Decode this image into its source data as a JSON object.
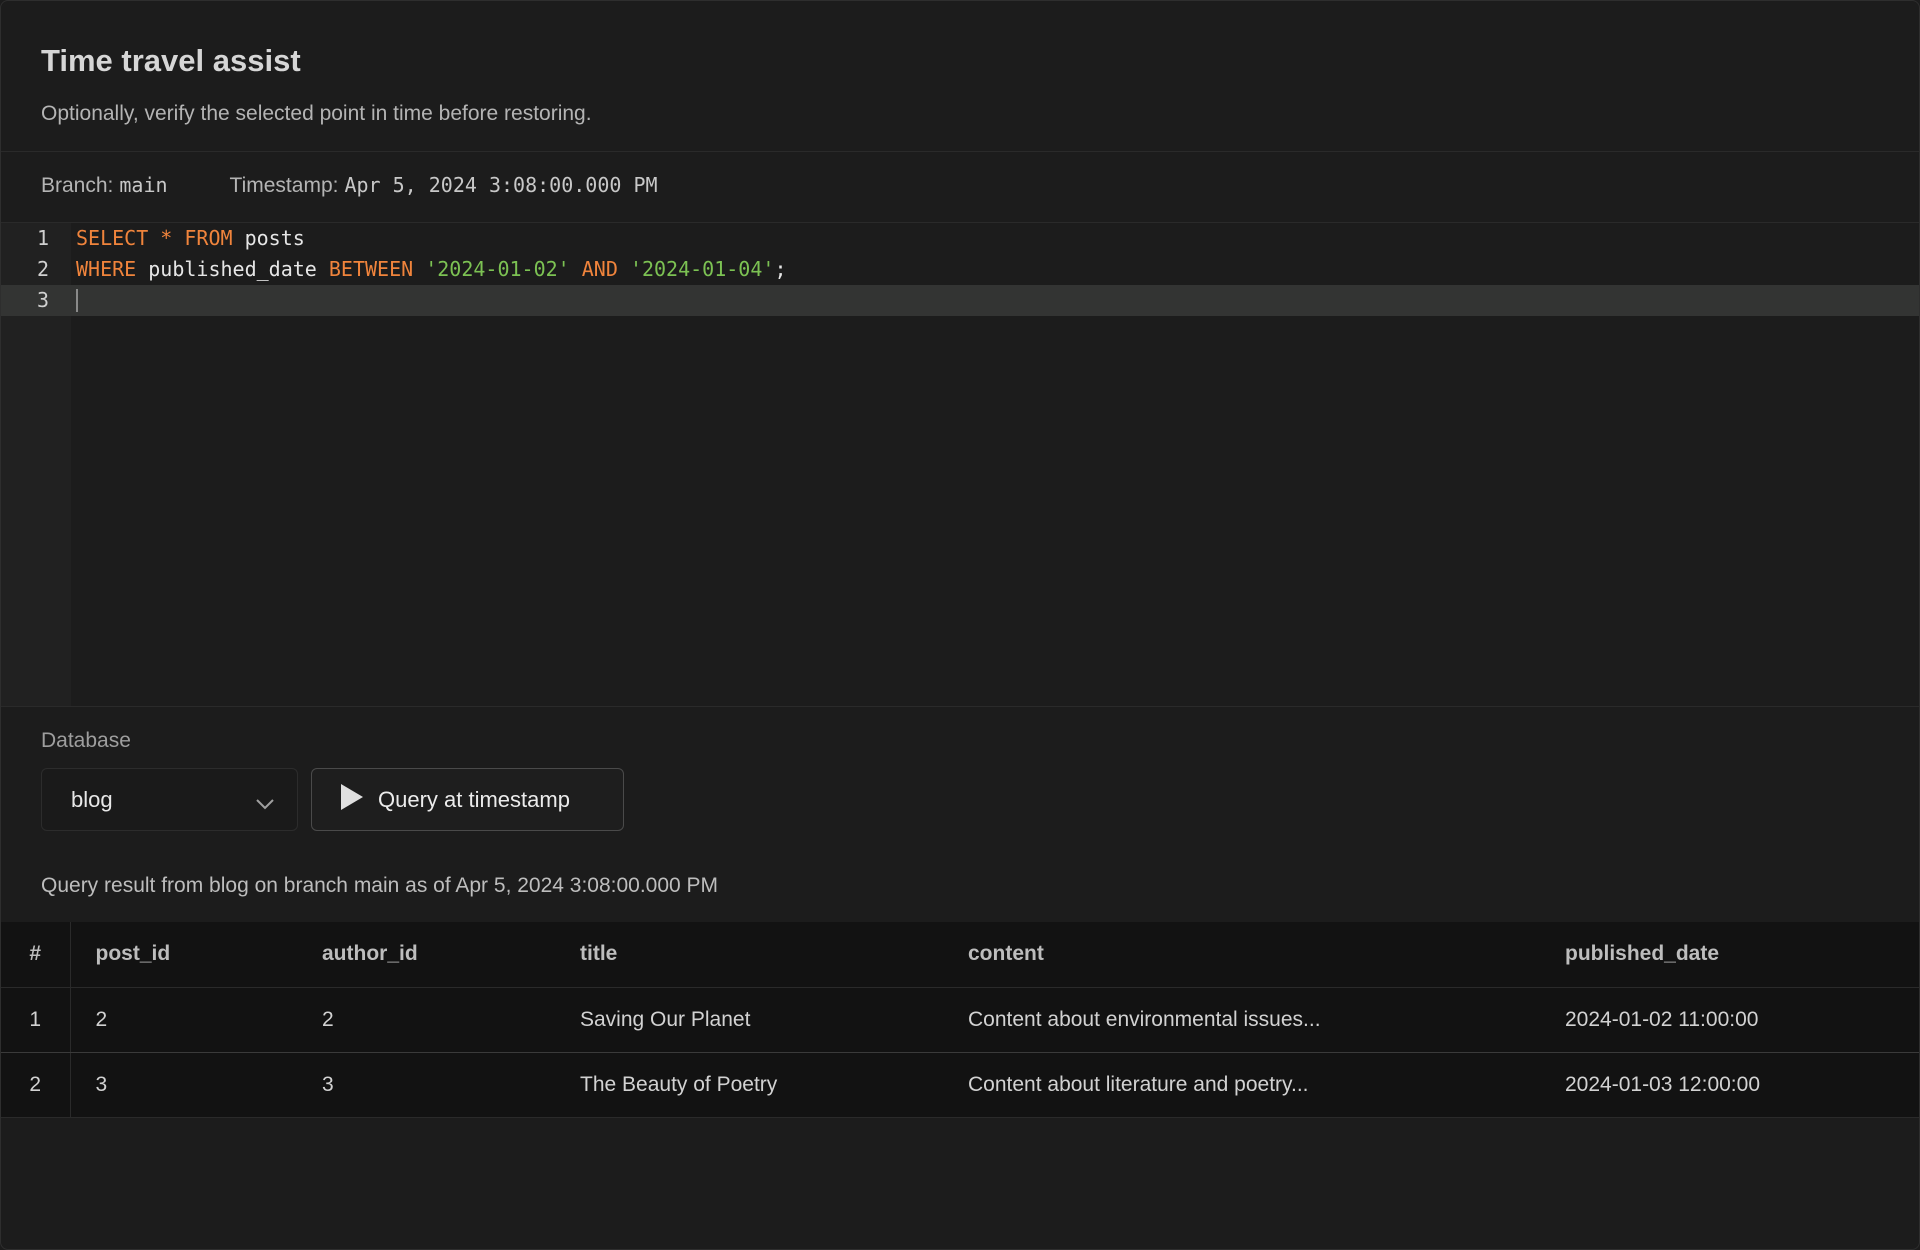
{
  "header": {
    "title": "Time travel assist",
    "subtitle": "Optionally, verify the selected point in time before restoring."
  },
  "meta": {
    "branch_label": "Branch:",
    "branch_value": "main",
    "timestamp_label": "Timestamp:",
    "timestamp_value": "Apr 5, 2024 3:08:00.000 PM"
  },
  "editor": {
    "lines": [
      {
        "num": "1",
        "tokens": [
          {
            "t": "SELECT",
            "c": "kw"
          },
          {
            "t": " "
          },
          {
            "t": "*",
            "c": "kw"
          },
          {
            "t": " "
          },
          {
            "t": "FROM",
            "c": "kw"
          },
          {
            "t": " posts"
          }
        ]
      },
      {
        "num": "2",
        "tokens": [
          {
            "t": "WHERE",
            "c": "kw"
          },
          {
            "t": " published_date "
          },
          {
            "t": "BETWEEN",
            "c": "kw"
          },
          {
            "t": " "
          },
          {
            "t": "'2024-01-02'",
            "c": "str"
          },
          {
            "t": " "
          },
          {
            "t": "AND",
            "c": "kw"
          },
          {
            "t": " "
          },
          {
            "t": "'2024-01-04'",
            "c": "str"
          },
          {
            "t": ";"
          }
        ]
      },
      {
        "num": "3",
        "tokens": []
      }
    ],
    "keyword_color": "#f0843c",
    "string_color": "#7cc253"
  },
  "database": {
    "label": "Database",
    "selected": "blog",
    "run_label": "Query at timestamp"
  },
  "result": {
    "summary": "Query result from blog on branch main as of Apr 5, 2024 3:08:00.000 PM",
    "columns": [
      "#",
      "post_id",
      "author_id",
      "title",
      "content",
      "published_date"
    ],
    "rows": [
      [
        "1",
        "2",
        "2",
        "Saving Our Planet",
        "Content about environmental issues...",
        "2024-01-02 11:00:00"
      ],
      [
        "2",
        "3",
        "3",
        "The Beauty of Poetry",
        "Content about literature and poetry...",
        "2024-01-03 12:00:00"
      ]
    ]
  }
}
